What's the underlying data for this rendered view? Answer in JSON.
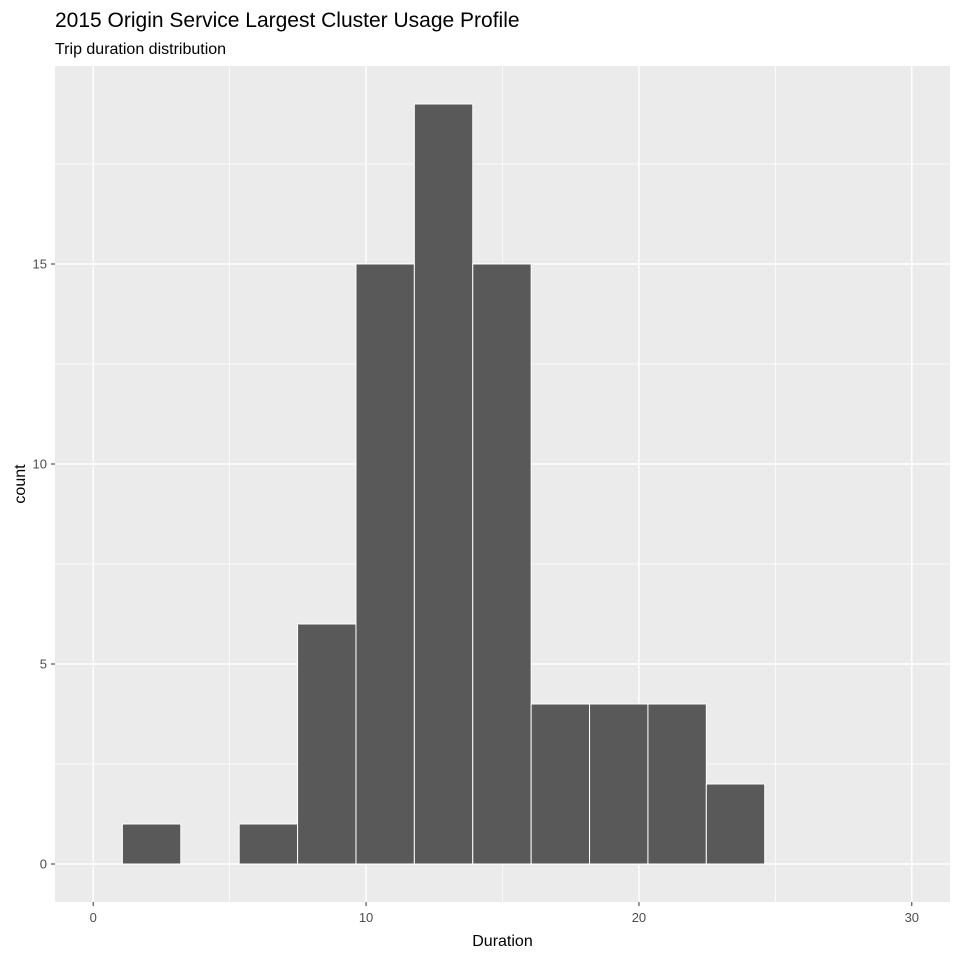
{
  "chart_data": {
    "type": "bar",
    "title": "2015 Origin Service Largest Cluster Usage Profile",
    "subtitle": "Trip duration distribution",
    "xlabel": "Duration",
    "ylabel": "count",
    "xlim": [
      -1.4,
      31.4
    ],
    "ylim": [
      -0.95,
      19.95
    ],
    "x_ticks": [
      0,
      10,
      20,
      30
    ],
    "y_ticks": [
      0,
      5,
      10,
      15
    ],
    "bin_width": 2.14,
    "bins": [
      {
        "start": 1.07,
        "end": 3.21,
        "count": 1
      },
      {
        "start": 3.21,
        "end": 5.35,
        "count": 0
      },
      {
        "start": 5.35,
        "end": 7.49,
        "count": 1
      },
      {
        "start": 7.49,
        "end": 9.63,
        "count": 6
      },
      {
        "start": 9.63,
        "end": 11.77,
        "count": 15
      },
      {
        "start": 11.77,
        "end": 13.91,
        "count": 19
      },
      {
        "start": 13.91,
        "end": 16.05,
        "count": 15
      },
      {
        "start": 16.05,
        "end": 18.19,
        "count": 4
      },
      {
        "start": 18.19,
        "end": 20.33,
        "count": 4
      },
      {
        "start": 20.33,
        "end": 22.47,
        "count": 4
      },
      {
        "start": 22.47,
        "end": 24.61,
        "count": 2
      }
    ],
    "grid": true,
    "legend": "none",
    "colors": {
      "bar_fill": "#595959",
      "bar_outline": "#ffffff",
      "panel_background": "#ebebeb",
      "grid_major": "#ffffff"
    }
  }
}
